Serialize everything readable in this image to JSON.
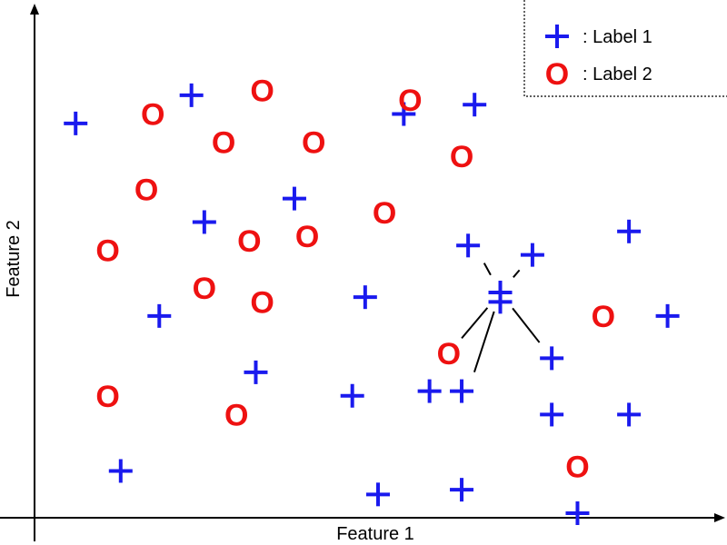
{
  "chart_data": {
    "type": "scatter",
    "title": "",
    "xlabel": "Feature 1",
    "ylabel": "Feature 2",
    "xlim": [
      0,
      100
    ],
    "ylim": [
      0,
      100
    ],
    "grid": false,
    "legend_position": "top-right",
    "series": [
      {
        "name": "Label 1",
        "marker": "+",
        "color": "#1a1aee",
        "points": [
          {
            "x": 3,
            "y": 83
          },
          {
            "x": 21,
            "y": 89
          },
          {
            "x": 65,
            "y": 87
          },
          {
            "x": 54,
            "y": 85
          },
          {
            "x": 23,
            "y": 62
          },
          {
            "x": 37,
            "y": 67
          },
          {
            "x": 64,
            "y": 57
          },
          {
            "x": 74,
            "y": 55
          },
          {
            "x": 89,
            "y": 60
          },
          {
            "x": 48,
            "y": 46
          },
          {
            "x": 69,
            "y": 45
          },
          {
            "x": 95,
            "y": 42
          },
          {
            "x": 16,
            "y": 42
          },
          {
            "x": 31,
            "y": 30
          },
          {
            "x": 46,
            "y": 25
          },
          {
            "x": 58,
            "y": 26
          },
          {
            "x": 63,
            "y": 26
          },
          {
            "x": 77,
            "y": 33
          },
          {
            "x": 77,
            "y": 21
          },
          {
            "x": 89,
            "y": 21
          },
          {
            "x": 10,
            "y": 9
          },
          {
            "x": 50,
            "y": 4
          },
          {
            "x": 63,
            "y": 5
          },
          {
            "x": 81,
            "y": 0
          }
        ]
      },
      {
        "name": "Label 2",
        "marker": "O",
        "color": "#ee1111",
        "points": [
          {
            "x": 32,
            "y": 90
          },
          {
            "x": 55,
            "y": 88
          },
          {
            "x": 15,
            "y": 85
          },
          {
            "x": 26,
            "y": 79
          },
          {
            "x": 40,
            "y": 79
          },
          {
            "x": 63,
            "y": 76
          },
          {
            "x": 14,
            "y": 69
          },
          {
            "x": 51,
            "y": 64
          },
          {
            "x": 39,
            "y": 59
          },
          {
            "x": 30,
            "y": 58
          },
          {
            "x": 8,
            "y": 56
          },
          {
            "x": 23,
            "y": 48
          },
          {
            "x": 32,
            "y": 45
          },
          {
            "x": 85,
            "y": 42
          },
          {
            "x": 61,
            "y": 34
          },
          {
            "x": 8,
            "y": 25
          },
          {
            "x": 28,
            "y": 21
          },
          {
            "x": 81,
            "y": 10
          }
        ]
      }
    ],
    "query_point": {
      "x": 69,
      "y": 47,
      "marker": "+",
      "color": "#1a1aee"
    },
    "neighbor_lines": [
      {
        "x": 65,
        "y": 57
      },
      {
        "x": 74,
        "y": 55
      },
      {
        "x": 77,
        "y": 33
      },
      {
        "x": 64,
        "y": 26
      },
      {
        "x": 61,
        "y": 34
      }
    ],
    "legend": [
      {
        "marker": "+",
        "color": "#1a1aee",
        "label": ": Label 1"
      },
      {
        "marker": "O",
        "color": "#ee1111",
        "label": ": Label 2"
      }
    ]
  }
}
